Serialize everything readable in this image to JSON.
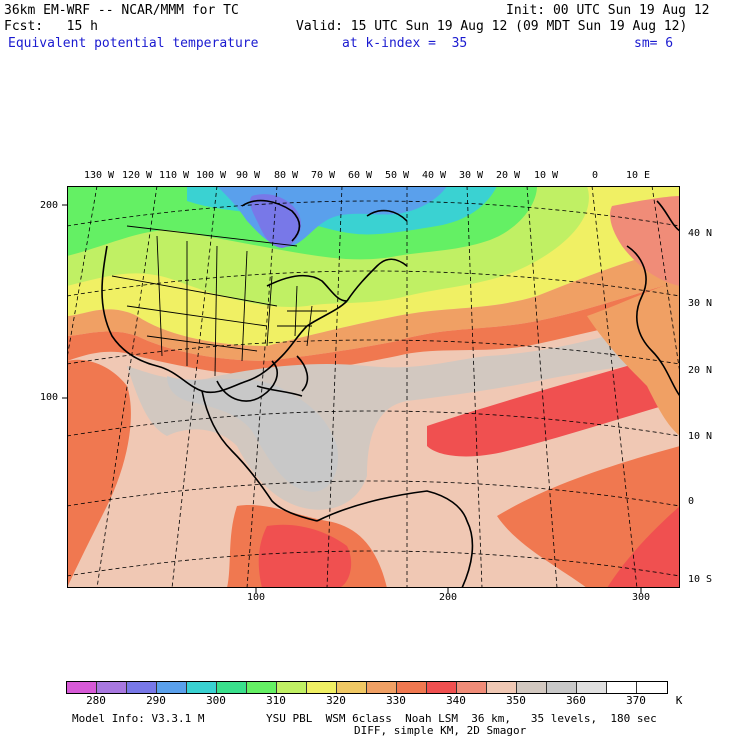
{
  "header": {
    "model_line": "36km EM-WRF -- NCAR/MMM for TC",
    "init_line": "Init: 00 UTC Sun 19 Aug 12",
    "fcst_line": "Fcst:   15 h",
    "valid_line": "Valid: 15 UTC Sun 19 Aug 12 (09 MDT Sun 19 Aug 12)",
    "field_name": "Equivalent potential temperature",
    "level_text": "at k-index =  35",
    "smooth_text": "sm= 6"
  },
  "map": {
    "lon_labels": [
      "130 W",
      "120 W",
      "110 W",
      "100 W",
      "90 W",
      "80 W",
      "70 W",
      "60 W",
      "50 W",
      "40 W",
      "30 W",
      "20 W",
      "10 W",
      "0",
      "10 E"
    ],
    "lat_labels": [
      "40 N",
      "30 N",
      "20 N",
      "10 N",
      "0",
      "10 S"
    ],
    "grid_x_labels": [
      "100",
      "200",
      "300"
    ],
    "grid_y_labels": [
      "200",
      "100"
    ]
  },
  "colorbar": {
    "values": [
      "280",
      "290",
      "300",
      "310",
      "320",
      "330",
      "340",
      "350",
      "360",
      "370"
    ],
    "unit": "K",
    "colors": [
      "#d75ad7",
      "#a878e0",
      "#7878e8",
      "#5aa0ec",
      "#3ad2d2",
      "#3ae08c",
      "#64f064",
      "#c0f064",
      "#f0f064",
      "#f0c864",
      "#f0a064",
      "#f07850",
      "#f05050",
      "#f08c78",
      "#f0c8b4",
      "#d2c8c0",
      "#c8c8c8",
      "#e0e0e0",
      "#ffffff",
      "#ffffff"
    ]
  },
  "footer": {
    "model_info": "Model Info: V3.3.1 M",
    "physics_line": "YSU PBL  WSM 6class  Noah LSM  36 km,   35 levels,  180 sec",
    "diff_line": "DIFF, simple KM, 2D Smagor"
  }
}
